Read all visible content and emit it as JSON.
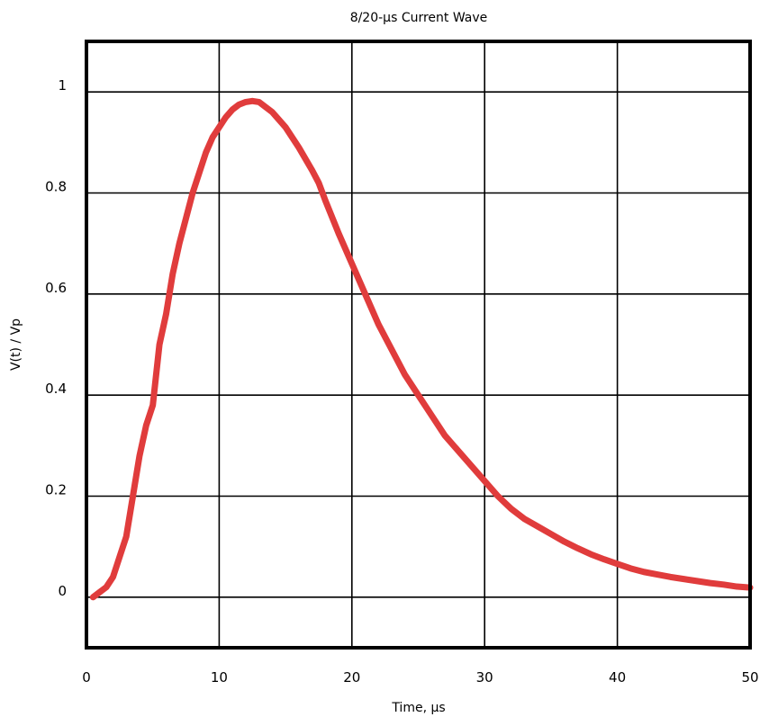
{
  "chart_data": {
    "type": "line",
    "title": "8/20-µs Current Wave",
    "xlabel": "Time, µs",
    "ylabel": "V(t) / Vp",
    "xlim": [
      0,
      50
    ],
    "ylim": [
      -0.1,
      1.1
    ],
    "grid": true,
    "x_ticks": [
      0,
      10,
      20,
      30,
      40,
      50
    ],
    "x_tick_labels": [
      "0",
      "10",
      "20",
      "30",
      "40",
      "50"
    ],
    "y_ticks": [
      0,
      0.2,
      0.4,
      0.6,
      0.8,
      1
    ],
    "y_tick_labels": [
      "0",
      "0.2",
      "0.4",
      "0.6",
      "0.8",
      "1"
    ],
    "line_color": "#e03c3c",
    "series": [
      {
        "x": [
          0.5,
          1,
          1.5,
          2,
          2.5,
          3,
          3.5,
          4,
          4.5,
          5,
          5.5,
          6,
          6.5,
          7,
          7.5,
          8,
          8.5,
          9,
          9.5,
          10,
          10.5,
          11,
          11.5,
          12,
          12.5,
          13,
          13.5,
          14,
          15,
          16,
          17,
          17.5,
          18,
          19,
          20,
          21,
          22,
          23,
          24,
          25,
          26,
          27,
          28,
          29,
          30,
          31,
          32,
          33,
          34,
          35,
          36,
          37,
          38,
          39,
          40,
          41,
          42,
          43,
          44,
          45,
          46,
          47,
          48,
          49,
          50
        ],
        "y": [
          0.0,
          0.01,
          0.02,
          0.04,
          0.08,
          0.12,
          0.2,
          0.28,
          0.34,
          0.38,
          0.5,
          0.56,
          0.64,
          0.7,
          0.75,
          0.8,
          0.84,
          0.88,
          0.91,
          0.93,
          0.95,
          0.965,
          0.975,
          0.98,
          0.982,
          0.98,
          0.97,
          0.96,
          0.93,
          0.89,
          0.845,
          0.82,
          0.785,
          0.72,
          0.66,
          0.6,
          0.54,
          0.49,
          0.44,
          0.4,
          0.36,
          0.32,
          0.29,
          0.26,
          0.23,
          0.2,
          0.175,
          0.155,
          0.14,
          0.125,
          0.11,
          0.097,
          0.085,
          0.075,
          0.066,
          0.057,
          0.05,
          0.045,
          0.04,
          0.036,
          0.032,
          0.028,
          0.025,
          0.021,
          0.019
        ]
      }
    ]
  }
}
